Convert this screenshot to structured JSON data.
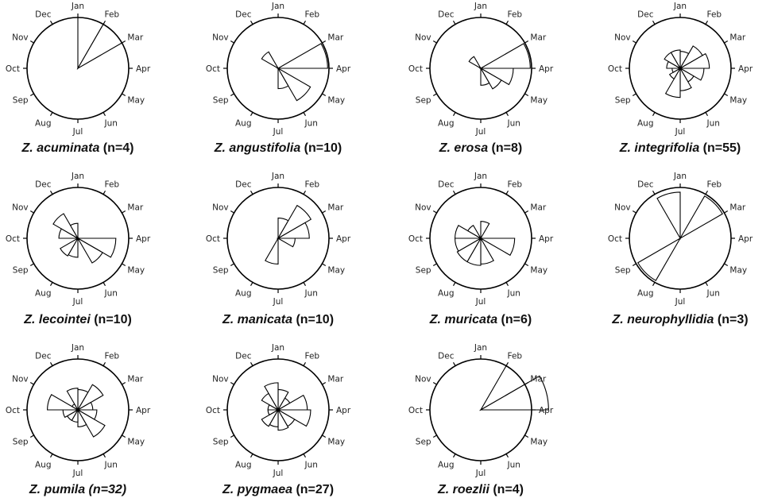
{
  "chart_data": {
    "type": "rose",
    "months": [
      "Jan",
      "Feb",
      "Mar",
      "Apr",
      "May",
      "Jun",
      "Jul",
      "Aug",
      "Sep",
      "Oct",
      "Nov",
      "Dec"
    ],
    "panels": [
      {
        "species": "Z. acuminata",
        "count": "(n=4)",
        "italic_count": false,
        "radial_max": 0.75,
        "values": [
          0.75,
          0.75,
          0,
          0,
          0,
          0,
          0,
          0,
          0,
          0,
          0,
          0
        ]
      },
      {
        "species": "Z. angustifolia",
        "count": "(n=10)",
        "italic_count": false,
        "radial_max": 0.75,
        "values": [
          0,
          0,
          0.73,
          0,
          0.55,
          0.3,
          0,
          0,
          0,
          0,
          0.28,
          0
        ]
      },
      {
        "species": "Z. erosa",
        "count": "(n=8)",
        "italic_count": false,
        "radial_max": 0.75,
        "values": [
          0,
          0,
          0.73,
          0.48,
          0.35,
          0.25,
          0,
          0,
          0,
          0,
          0.2,
          0
        ]
      },
      {
        "species": "Z. integrifolia",
        "count": "(n=55)",
        "italic_count": false,
        "radial_max": 0.75,
        "values": [
          0.25,
          0.38,
          0.43,
          0.35,
          0.23,
          0.33,
          0.43,
          0.18,
          0.12,
          0.2,
          0.27,
          0.27
        ]
      },
      {
        "species": "Z. lecointei",
        "count": "(n=10)",
        "italic_count": false,
        "radial_max": 0.75,
        "values": [
          0,
          0,
          0,
          0.56,
          0.42,
          0,
          0.28,
          0.3,
          0,
          0.28,
          0.42,
          0.22
        ]
      },
      {
        "species": "Z. manicata",
        "count": "(n=10)",
        "italic_count": false,
        "radial_max": 0.75,
        "values": [
          0.3,
          0.56,
          0.46,
          0.25,
          0,
          0,
          0.38,
          0,
          0,
          0,
          0,
          0
        ]
      },
      {
        "species": "Z. muricata",
        "count": "(n=6)",
        "italic_count": false,
        "radial_max": 0.75,
        "values": [
          0.25,
          0,
          0,
          0.5,
          0,
          0.38,
          0.4,
          0.4,
          0.38,
          0.38,
          0.22,
          0
        ]
      },
      {
        "species": "Z. neurophyllidia",
        "count": "(n=3)",
        "italic_count": false,
        "radial_max": 0.75,
        "values": [
          0,
          0.72,
          0,
          0,
          0,
          0,
          0,
          0.72,
          0,
          0,
          0,
          0.68
        ]
      },
      {
        "species": "Z. pumila",
        "count": "(n=32)",
        "italic_count": true,
        "radial_max": 0.75,
        "values": [
          0.3,
          0.43,
          0.22,
          0.28,
          0.46,
          0.25,
          0.18,
          0.18,
          0.22,
          0.45,
          0.1,
          0.32
        ]
      },
      {
        "species": "Z. pygmaea",
        "count": "(n=27)",
        "italic_count": false,
        "radial_max": 0.75,
        "values": [
          0.3,
          0.2,
          0.43,
          0.48,
          0.28,
          0.3,
          0.25,
          0.28,
          0.15,
          0.15,
          0.28,
          0.4
        ]
      },
      {
        "species": "Z. roezlii",
        "count": "(n=4)",
        "italic_count": false,
        "radial_max": 0.75,
        "values": [
          0,
          0.75,
          1.0,
          0,
          0,
          0,
          0,
          0,
          0,
          0,
          0,
          0
        ]
      }
    ]
  }
}
